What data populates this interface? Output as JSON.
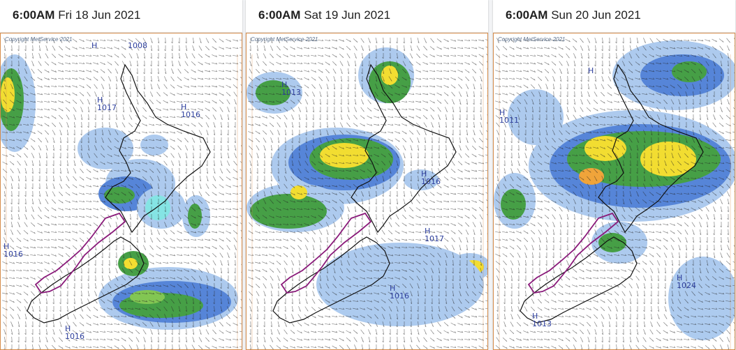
{
  "panels": [
    {
      "time": "6:00AM",
      "date": "Fri 18 Jun 2021",
      "copyright": "Copyright MetService 2021",
      "pressure_labels": [
        {
          "text": "H",
          "value": "1016"
        },
        {
          "text": "H",
          "value": "1017"
        },
        {
          "text": "H",
          "value": "1016"
        },
        {
          "text": "H",
          "value": "1008"
        }
      ]
    },
    {
      "time": "6:00AM",
      "date": "Sat 19 Jun 2021",
      "copyright": "Copyright MetService 2021",
      "pressure_labels": [
        {
          "text": "H",
          "value": "1013"
        },
        {
          "text": "H",
          "value": "1016"
        },
        {
          "text": "H",
          "value": "1017"
        }
      ]
    },
    {
      "time": "6:00AM",
      "date": "Sun 20 Jun 2021",
      "copyright": "Copyright MetService 2021",
      "pressure_labels": [
        {
          "text": "H",
          "value": "1013"
        },
        {
          "text": "H",
          "value": "1011"
        },
        {
          "text": "H",
          "value": "1024"
        }
      ]
    }
  ],
  "colors": {
    "rain_light": "#a9c8ee",
    "rain_blue": "#4d7fd6",
    "rain_cyan": "#7fe3e3",
    "rain_green": "#3d9a3d",
    "rain_lightgreen": "#7cc44a",
    "rain_yellow": "#f2dc27",
    "rain_orange": "#f0a030",
    "coast": "#111111",
    "mountain": "#8a1a7a",
    "barb": "#222222",
    "frame": "#d68c4a"
  }
}
